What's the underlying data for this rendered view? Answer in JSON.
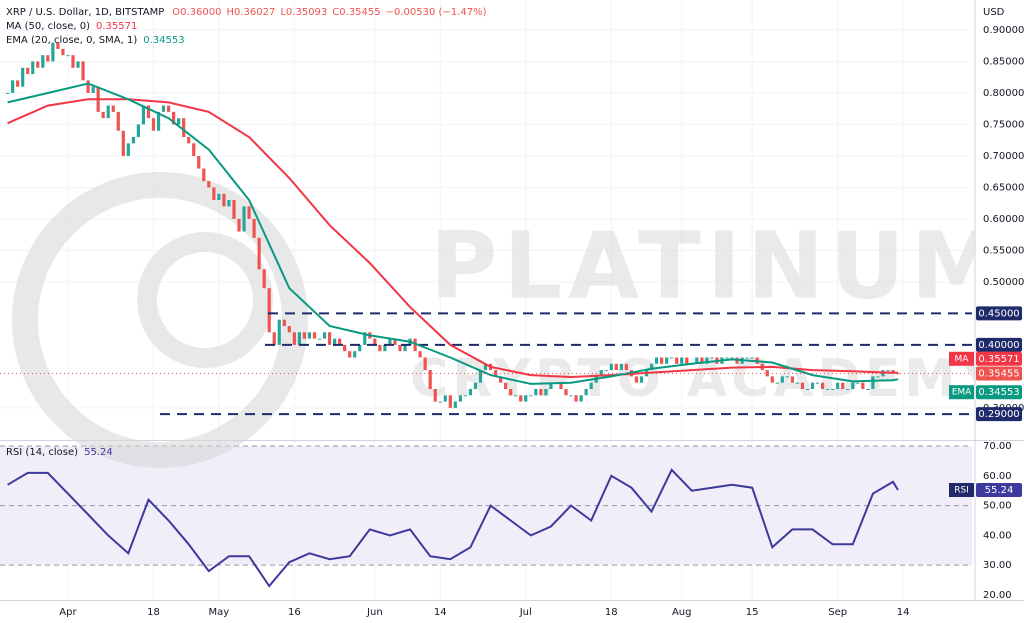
{
  "chart_data": [
    {
      "type": "candlestick",
      "title": "XRP / U.S. Dollar, 1D, BITSTAMP",
      "quote": [
        "O0.36000",
        "H0.36027",
        "L0.35093",
        "C0.35455",
        "−0.00530 (−1.47%)"
      ],
      "unit": "USD",
      "up_color": "#26a69a",
      "down_color": "#ef5350",
      "values": [
        0.8,
        0.82,
        0.81,
        0.84,
        0.83,
        0.85,
        0.84,
        0.86,
        0.85,
        0.88,
        0.87,
        0.86,
        0.86,
        0.84,
        0.85,
        0.82,
        0.8,
        0.81,
        0.77,
        0.76,
        0.78,
        0.77,
        0.74,
        0.7,
        0.72,
        0.73,
        0.75,
        0.78,
        0.76,
        0.74,
        0.77,
        0.78,
        0.77,
        0.75,
        0.76,
        0.73,
        0.72,
        0.7,
        0.68,
        0.66,
        0.65,
        0.63,
        0.64,
        0.62,
        0.63,
        0.6,
        0.58,
        0.62,
        0.6,
        0.57,
        0.52,
        0.49,
        0.42,
        0.4,
        0.44,
        0.43,
        0.42,
        0.4,
        0.42,
        0.41,
        0.42,
        0.41,
        0.41,
        0.42,
        0.4,
        0.41,
        0.4,
        0.39,
        0.38,
        0.39,
        0.4,
        0.42,
        0.41,
        0.4,
        0.39,
        0.4,
        0.41,
        0.4,
        0.39,
        0.4,
        0.41,
        0.39,
        0.38,
        0.36,
        0.33,
        0.31,
        0.31,
        0.32,
        0.3,
        0.31,
        0.32,
        0.32,
        0.33,
        0.34,
        0.36,
        0.37,
        0.36,
        0.35,
        0.34,
        0.33,
        0.32,
        0.32,
        0.31,
        0.32,
        0.32,
        0.33,
        0.32,
        0.33,
        0.34,
        0.34,
        0.33,
        0.32,
        0.32,
        0.31,
        0.32,
        0.33,
        0.34,
        0.35,
        0.36,
        0.36,
        0.37,
        0.36,
        0.37,
        0.36,
        0.35,
        0.34,
        0.35,
        0.36,
        0.37,
        0.38,
        0.37,
        0.38,
        0.38,
        0.37,
        0.38,
        0.37,
        0.37,
        0.38,
        0.37,
        0.38,
        0.38,
        0.37,
        0.38,
        0.38,
        0.38,
        0.37,
        0.38,
        0.38,
        0.38,
        0.37,
        0.36,
        0.35,
        0.34,
        0.34,
        0.35,
        0.35,
        0.34,
        0.34,
        0.33,
        0.33,
        0.34,
        0.34,
        0.33,
        0.33,
        0.33,
        0.34,
        0.33,
        0.33,
        0.34,
        0.34,
        0.33,
        0.33,
        0.35,
        0.35,
        0.36,
        0.36,
        0.355,
        0.35455
      ],
      "last_label": "0.35455",
      "xlim": [
        -1.51,
        191.7
      ],
      "xticks": [
        {
          "value": 12,
          "label": "Apr"
        },
        {
          "value": 29,
          "label": "18"
        },
        {
          "value": 42,
          "label": "May"
        },
        {
          "value": 57,
          "label": "16"
        },
        {
          "value": 73,
          "label": "Jun"
        },
        {
          "value": 86,
          "label": "14"
        },
        {
          "value": 103,
          "label": "Jul"
        },
        {
          "value": 120,
          "label": "18"
        },
        {
          "value": 134,
          "label": "Aug"
        },
        {
          "value": 148,
          "label": "15"
        },
        {
          "value": 165,
          "label": "Sep"
        },
        {
          "value": 178,
          "label": "14"
        }
      ],
      "ylim": [
        0.249,
        0.9476
      ],
      "yticks": [
        {
          "value": 0.3,
          "label": "0.30000"
        },
        {
          "value": 0.5,
          "label": "0.50000"
        },
        {
          "value": 0.55,
          "label": "0.55000"
        },
        {
          "value": 0.6,
          "label": "0.60000"
        },
        {
          "value": 0.65,
          "label": "0.65000"
        },
        {
          "value": 0.7,
          "label": "0.70000"
        },
        {
          "value": 0.75,
          "label": "0.75000"
        },
        {
          "value": 0.8,
          "label": "0.80000"
        },
        {
          "value": 0.85,
          "label": "0.85000"
        },
        {
          "value": 0.9,
          "label": "0.90000"
        }
      ],
      "levels": [
        {
          "value": 0.45,
          "label": "0.45000"
        },
        {
          "value": 0.4,
          "label": "0.40000"
        },
        {
          "value": 0.29,
          "label": "0.29000"
        }
      ],
      "level_color": "#1f2a6b",
      "series": [
        {
          "name": "MA",
          "legend": "MA (50, close, 0)",
          "value_label": "0.35571",
          "color": "#f23645",
          "x": [
            0,
            8,
            16,
            24,
            32,
            40,
            48,
            56,
            64,
            72,
            80,
            88,
            96,
            104,
            112,
            120,
            128,
            136,
            144,
            152,
            160,
            168,
            176,
            177
          ],
          "values": [
            0.752,
            0.78,
            0.79,
            0.79,
            0.785,
            0.77,
            0.73,
            0.665,
            0.59,
            0.53,
            0.46,
            0.4,
            0.365,
            0.352,
            0.349,
            0.352,
            0.356,
            0.36,
            0.364,
            0.365,
            0.36,
            0.358,
            0.3557,
            0.35571
          ]
        },
        {
          "name": "EMA",
          "legend": "EMA (20, close, 0, SMA, 1)",
          "value_label": "0.34553",
          "color": "#089981",
          "x": [
            0,
            8,
            16,
            24,
            32,
            40,
            48,
            56,
            64,
            72,
            80,
            88,
            96,
            104,
            112,
            120,
            128,
            136,
            144,
            152,
            160,
            168,
            176,
            177
          ],
          "values": [
            0.785,
            0.8,
            0.815,
            0.79,
            0.76,
            0.71,
            0.63,
            0.49,
            0.43,
            0.415,
            0.405,
            0.38,
            0.352,
            0.338,
            0.34,
            0.35,
            0.362,
            0.37,
            0.377,
            0.372,
            0.352,
            0.342,
            0.344,
            0.34553
          ]
        }
      ],
      "watermark": [
        "PLATINUM",
        "CRYPTO ACADEMY"
      ]
    },
    {
      "type": "line",
      "name": "RSI",
      "legend": "RSI (14, close)",
      "value_label": "55.24",
      "color": "#3c3a9c",
      "x": [
        0,
        4,
        8,
        12,
        16,
        20,
        24,
        28,
        32,
        36,
        40,
        44,
        48,
        52,
        56,
        60,
        64,
        68,
        72,
        76,
        80,
        84,
        88,
        92,
        96,
        100,
        104,
        108,
        112,
        116,
        120,
        124,
        128,
        132,
        136,
        140,
        144,
        148,
        152,
        156,
        160,
        164,
        168,
        172,
        176,
        177
      ],
      "values": [
        57,
        61,
        61,
        54,
        47,
        40,
        34,
        52,
        45,
        37,
        28,
        33,
        33,
        23,
        31,
        34,
        32,
        33,
        42,
        40,
        42,
        33,
        32,
        36,
        50,
        45,
        40,
        43,
        50,
        45,
        60,
        56,
        48,
        62,
        55,
        56,
        57,
        56,
        36,
        42,
        42,
        37,
        37,
        54,
        58,
        55.24
      ],
      "ylim": [
        18.3,
        71.7
      ],
      "yticks": [
        {
          "value": 70,
          "label": "70.00"
        },
        {
          "value": 60,
          "label": "60.00"
        },
        {
          "value": 50,
          "label": "50.00"
        },
        {
          "value": 40,
          "label": "40.00"
        },
        {
          "value": 30,
          "label": "30.00"
        },
        {
          "value": 20,
          "label": "20.00"
        }
      ],
      "band": [
        30,
        70
      ],
      "midline": 50
    }
  ]
}
